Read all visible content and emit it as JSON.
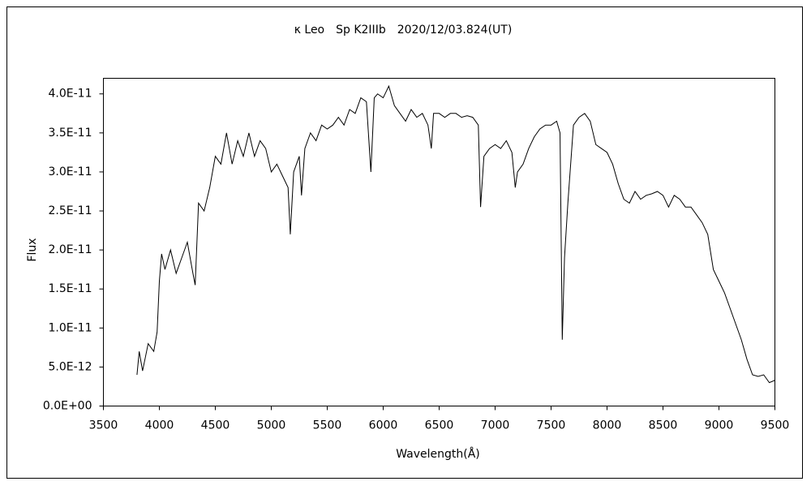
{
  "chart_data": {
    "type": "line",
    "title": "κ Leo　Sp K2IIIb　2020/12/03.824(UT)",
    "x_label": "Wavelength(Å)",
    "y_label": "Flux",
    "color": "#000000",
    "x": [
      3800,
      3820,
      3850,
      3900,
      3950,
      3980,
      4000,
      4020,
      4050,
      4100,
      4150,
      4200,
      4250,
      4300,
      4320,
      4350,
      4400,
      4450,
      4500,
      4550,
      4600,
      4650,
      4700,
      4750,
      4800,
      4850,
      4900,
      4950,
      5000,
      5050,
      5100,
      5150,
      5170,
      5200,
      5250,
      5270,
      5300,
      5350,
      5400,
      5450,
      5500,
      5550,
      5600,
      5650,
      5700,
      5750,
      5800,
      5850,
      5890,
      5920,
      5950,
      6000,
      6050,
      6100,
      6150,
      6200,
      6250,
      6300,
      6350,
      6400,
      6430,
      6450,
      6500,
      6550,
      6600,
      6650,
      6700,
      6750,
      6800,
      6850,
      6870,
      6900,
      6950,
      7000,
      7050,
      7100,
      7150,
      7180,
      7200,
      7250,
      7300,
      7350,
      7400,
      7450,
      7500,
      7550,
      7580,
      7600,
      7620,
      7650,
      7700,
      7750,
      7800,
      7850,
      7900,
      7950,
      8000,
      8050,
      8100,
      8150,
      8200,
      8250,
      8300,
      8350,
      8400,
      8450,
      8500,
      8550,
      8600,
      8650,
      8700,
      8750,
      8800,
      8850,
      8900,
      8950,
      9000,
      9050,
      9100,
      9150,
      9200,
      9250,
      9300,
      9350,
      9400,
      9450,
      9500
    ],
    "values": [
      4e-12,
      7e-12,
      4.5e-12,
      8e-12,
      7e-12,
      9.5e-12,
      1.6e-11,
      1.95e-11,
      1.75e-11,
      2e-11,
      1.7e-11,
      1.9e-11,
      2.1e-11,
      1.7e-11,
      1.55e-11,
      2.6e-11,
      2.5e-11,
      2.8e-11,
      3.2e-11,
      3.1e-11,
      3.5e-11,
      3.1e-11,
      3.4e-11,
      3.2e-11,
      3.5e-11,
      3.2e-11,
      3.4e-11,
      3.3e-11,
      3e-11,
      3.1e-11,
      2.95e-11,
      2.8e-11,
      2.2e-11,
      3e-11,
      3.2e-11,
      2.7e-11,
      3.3e-11,
      3.5e-11,
      3.4e-11,
      3.6e-11,
      3.55e-11,
      3.6e-11,
      3.7e-11,
      3.6e-11,
      3.8e-11,
      3.75e-11,
      3.95e-11,
      3.9e-11,
      3e-11,
      3.95e-11,
      4e-11,
      3.95e-11,
      4.1e-11,
      3.85e-11,
      3.75e-11,
      3.65e-11,
      3.8e-11,
      3.7e-11,
      3.75e-11,
      3.6e-11,
      3.3e-11,
      3.75e-11,
      3.75e-11,
      3.7e-11,
      3.75e-11,
      3.75e-11,
      3.7e-11,
      3.72e-11,
      3.7e-11,
      3.6e-11,
      2.55e-11,
      3.2e-11,
      3.3e-11,
      3.35e-11,
      3.3e-11,
      3.4e-11,
      3.25e-11,
      2.8e-11,
      3e-11,
      3.1e-11,
      3.3e-11,
      3.45e-11,
      3.55e-11,
      3.6e-11,
      3.6e-11,
      3.65e-11,
      3.5e-11,
      8.5e-12,
      1.9e-11,
      2.6e-11,
      3.6e-11,
      3.7e-11,
      3.75e-11,
      3.65e-11,
      3.35e-11,
      3.3e-11,
      3.25e-11,
      3.1e-11,
      2.85e-11,
      2.65e-11,
      2.6e-11,
      2.75e-11,
      2.65e-11,
      2.7e-11,
      2.72e-11,
      2.75e-11,
      2.7e-11,
      2.55e-11,
      2.7e-11,
      2.65e-11,
      2.55e-11,
      2.55e-11,
      2.45e-11,
      2.35e-11,
      2.2e-11,
      1.75e-11,
      1.6e-11,
      1.45e-11,
      1.25e-11,
      1.05e-11,
      8.5e-12,
      6e-12,
      4e-12,
      3.8e-12,
      4e-12,
      3e-12,
      3.3e-12
    ],
    "xlim": [
      3500,
      9500
    ],
    "xticks": [
      3500,
      4000,
      4500,
      5000,
      5500,
      6000,
      6500,
      7000,
      7500,
      8000,
      8500,
      9000,
      9500
    ],
    "ylim": [
      0,
      4.2e-11
    ],
    "yticks": [
      {
        "value": 0,
        "label": "0.0E+00"
      },
      {
        "value": 5e-12,
        "label": "5.0E-12"
      },
      {
        "value": 1e-11,
        "label": "1.0E-11"
      },
      {
        "value": 1.5e-11,
        "label": "1.5E-11"
      },
      {
        "value": 2e-11,
        "label": "2.0E-11"
      },
      {
        "value": 2.5e-11,
        "label": "2.5E-11"
      },
      {
        "value": 3e-11,
        "label": "3.0E-11"
      },
      {
        "value": 3.5e-11,
        "label": "3.5E-11"
      },
      {
        "value": 4e-11,
        "label": "4.0E-11"
      }
    ],
    "grid": false
  }
}
